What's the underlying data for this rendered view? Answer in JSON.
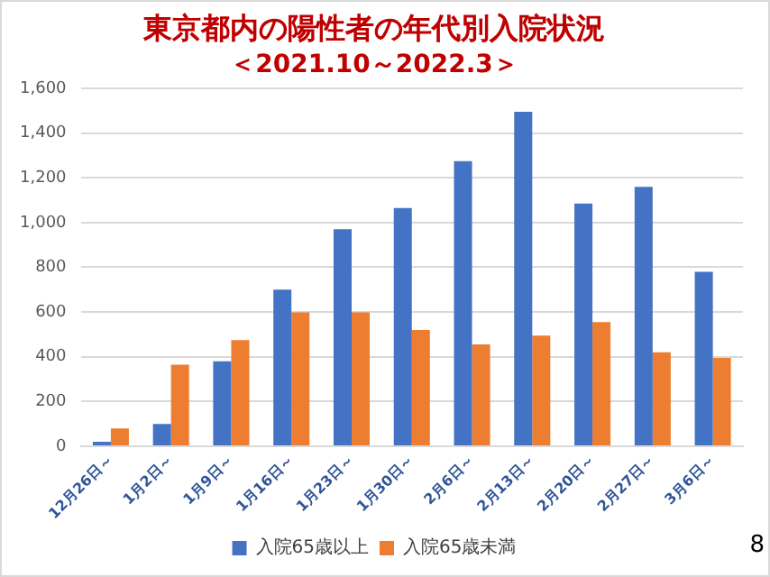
{
  "chart_data": {
    "type": "bar",
    "title": "東京都内の陽性者の年代別入院状況",
    "subtitle": "＜2021.10～2022.3＞",
    "categories": [
      "12月26日～",
      "1月2日～",
      "1月9日～",
      "1月16日～",
      "1月23日～",
      "1月30日～",
      "2月6日～",
      "2月13日～",
      "2月20日～",
      "2月27日～",
      "3月6日～"
    ],
    "series": [
      {
        "name": "入院65歳以上",
        "color": "#4472c4",
        "values": [
          20,
          100,
          380,
          700,
          970,
          1065,
          1275,
          1495,
          1085,
          1160,
          780
        ]
      },
      {
        "name": "入院65歳未満",
        "color": "#ed7d31",
        "values": [
          80,
          365,
          475,
          598,
          598,
          520,
          455,
          495,
          555,
          420,
          395
        ]
      }
    ],
    "ylim": [
      0,
      1600
    ],
    "yticks": [
      {
        "value": 0,
        "label": "0"
      },
      {
        "value": 200,
        "label": "200"
      },
      {
        "value": 400,
        "label": "400"
      },
      {
        "value": 600,
        "label": "600"
      },
      {
        "value": 800,
        "label": "800"
      },
      {
        "value": 1000,
        "label": "1,000"
      },
      {
        "value": 1200,
        "label": "1,200"
      },
      {
        "value": 1400,
        "label": "1,400"
      },
      {
        "value": 1600,
        "label": "1,600"
      }
    ],
    "grid": "y",
    "legend": "bottom",
    "annotations": [
      "8"
    ]
  }
}
